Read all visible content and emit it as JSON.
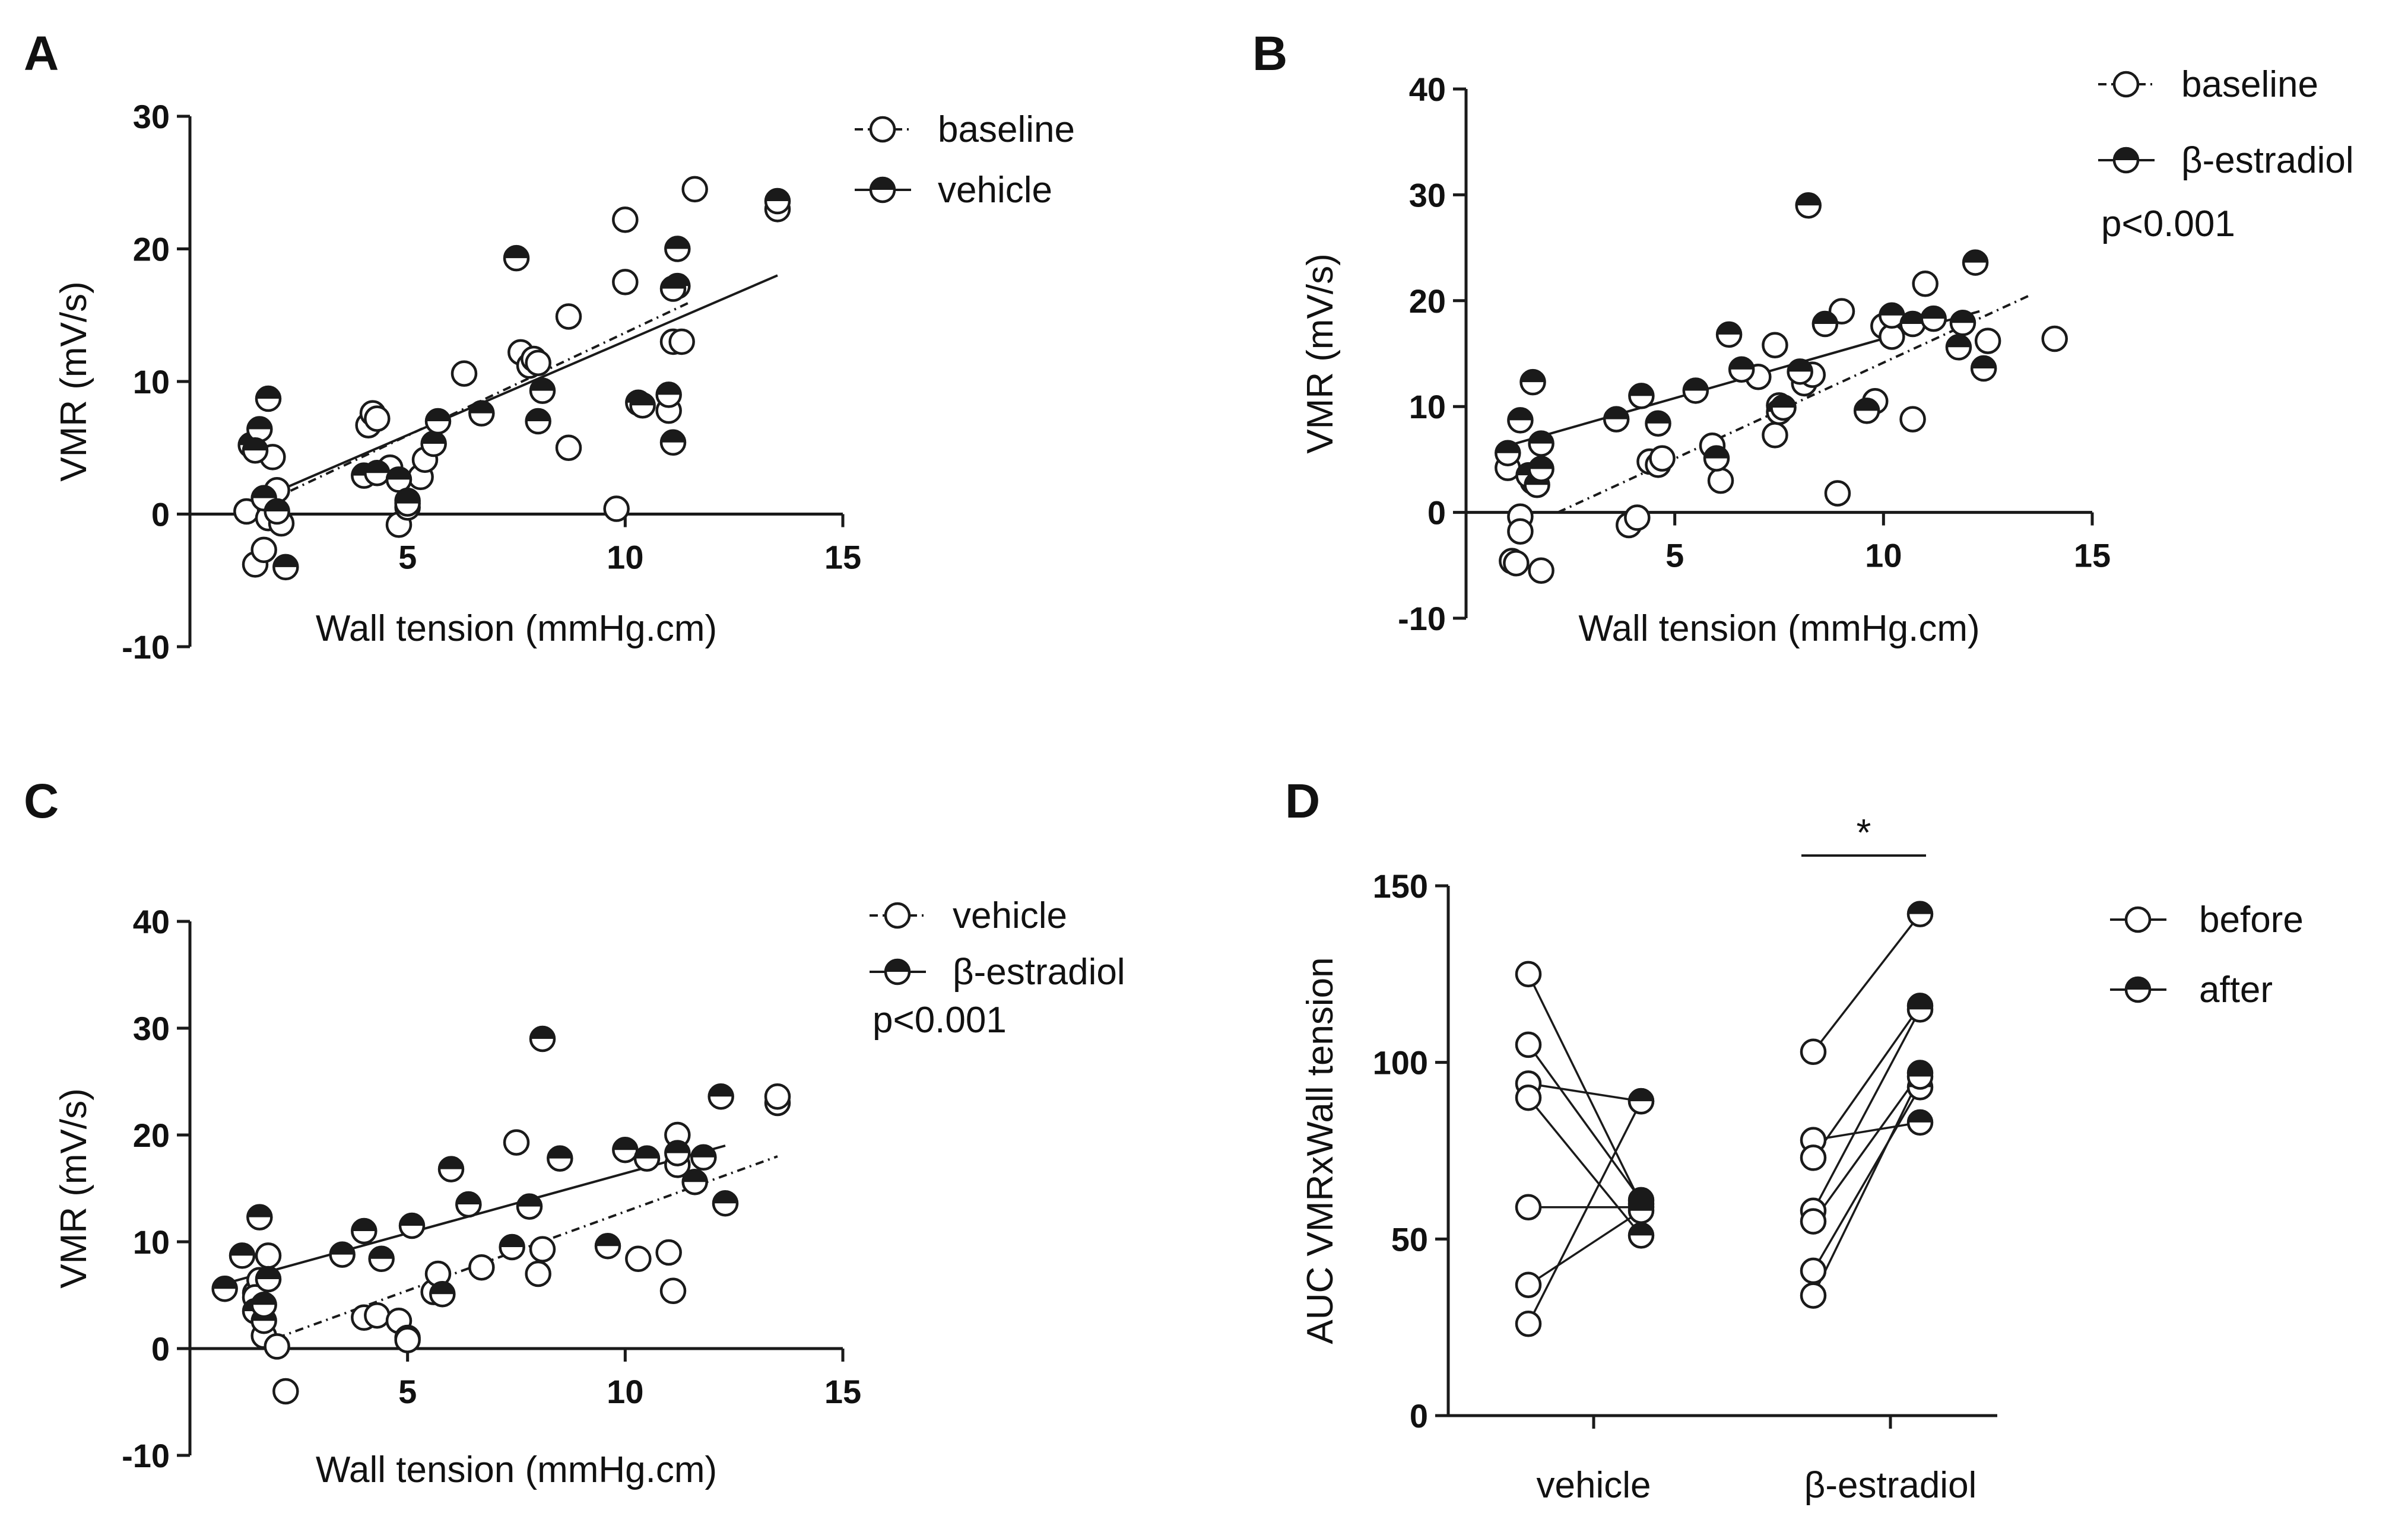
{
  "chart_data": [
    {
      "panel": "A",
      "type": "scatter",
      "xlabel": "Wall tension (mmHg.cm)",
      "ylabel": "VMR (mV/s)",
      "xlim": [
        0,
        15
      ],
      "ylim": [
        -10,
        30
      ],
      "xticks": [
        5,
        10,
        15
      ],
      "yticks": [
        -10,
        0,
        10,
        20,
        30
      ],
      "legend_position": "top-right",
      "annotation": "",
      "series": [
        {
          "name": "baseline",
          "marker": "open",
          "line": "dashdot",
          "fit": [
            [
              1.5,
              0.5
            ],
            [
              11.5,
              16
            ]
          ],
          "points": [
            [
              1.3,
              0.2
            ],
            [
              1.5,
              -3.8
            ],
            [
              1.7,
              -2.7
            ],
            [
              1.9,
              4.3
            ],
            [
              2.0,
              1.8
            ],
            [
              1.8,
              -0.3
            ],
            [
              2.1,
              -0.7
            ],
            [
              4.1,
              6.7
            ],
            [
              4.2,
              7.6
            ],
            [
              4.3,
              7.2
            ],
            [
              4.6,
              3.5
            ],
            [
              4.8,
              -0.8
            ],
            [
              5.0,
              0.5
            ],
            [
              5.3,
              2.8
            ],
            [
              5.4,
              4.1
            ],
            [
              6.3,
              10.6
            ],
            [
              7.6,
              12.2
            ],
            [
              7.8,
              11.2
            ],
            [
              7.9,
              11.7
            ],
            [
              8.0,
              11.4
            ],
            [
              8.7,
              5.0
            ],
            [
              8.7,
              14.9
            ],
            [
              9.8,
              0.4
            ],
            [
              10.0,
              17.5
            ],
            [
              10.0,
              22.2
            ],
            [
              11.0,
              7.8
            ],
            [
              11.1,
              13.0
            ],
            [
              11.3,
              13.0
            ],
            [
              11.6,
              24.5
            ],
            [
              13.5,
              23.0
            ]
          ]
        },
        {
          "name": "vehicle",
          "marker": "half",
          "line": "solid",
          "fit": [
            [
              1.5,
              1.0
            ],
            [
              13.5,
              18.0
            ]
          ],
          "points": [
            [
              1.4,
              5.2
            ],
            [
              1.6,
              6.4
            ],
            [
              1.5,
              4.8
            ],
            [
              1.8,
              8.7
            ],
            [
              1.7,
              1.2
            ],
            [
              2.0,
              0.2
            ],
            [
              2.2,
              -4.0
            ],
            [
              4.0,
              2.9
            ],
            [
              4.3,
              3.1
            ],
            [
              4.8,
              2.6
            ],
            [
              5.0,
              1.0
            ],
            [
              5.0,
              0.8
            ],
            [
              5.6,
              5.3
            ],
            [
              5.7,
              7.0
            ],
            [
              6.7,
              7.6
            ],
            [
              7.5,
              19.3
            ],
            [
              8.0,
              7.0
            ],
            [
              8.1,
              9.3
            ],
            [
              10.3,
              8.4
            ],
            [
              10.4,
              8.2
            ],
            [
              11.0,
              9.0
            ],
            [
              11.1,
              5.4
            ],
            [
              11.2,
              17.2
            ],
            [
              11.1,
              17.0
            ],
            [
              11.2,
              20.0
            ],
            [
              13.5,
              23.6
            ]
          ]
        }
      ]
    },
    {
      "panel": "B",
      "type": "scatter",
      "xlabel": "Wall tension (mmHg.cm)",
      "ylabel": "VMR (mV/s)",
      "xlim": [
        0,
        15
      ],
      "ylim": [
        -10,
        40
      ],
      "xticks": [
        5,
        10,
        15
      ],
      "yticks": [
        -10,
        0,
        10,
        20,
        30,
        40
      ],
      "legend_position": "top-right",
      "annotation": "p<0.001",
      "series": [
        {
          "name": "baseline",
          "marker": "open",
          "line": "dashdot",
          "fit": [
            [
              2.2,
              0.0
            ],
            [
              13.5,
              20.5
            ]
          ],
          "points": [
            [
              1.0,
              4.2
            ],
            [
              1.1,
              -4.6
            ],
            [
              1.2,
              -4.8
            ],
            [
              1.3,
              -0.4
            ],
            [
              1.3,
              -1.8
            ],
            [
              1.6,
              2.9
            ],
            [
              1.8,
              -5.5
            ],
            [
              3.9,
              -1.2
            ],
            [
              4.1,
              -0.5
            ],
            [
              4.4,
              4.8
            ],
            [
              4.6,
              4.5
            ],
            [
              4.7,
              5.1
            ],
            [
              5.9,
              6.3
            ],
            [
              6.1,
              3.0
            ],
            [
              7.0,
              12.8
            ],
            [
              7.5,
              10.1
            ],
            [
              7.4,
              15.8
            ],
            [
              7.4,
              7.3
            ],
            [
              8.1,
              12.2
            ],
            [
              8.3,
              13.0
            ],
            [
              8.9,
              1.8
            ],
            [
              9.0,
              19.0
            ],
            [
              9.8,
              10.5
            ],
            [
              10.0,
              17.6
            ],
            [
              10.2,
              16.6
            ],
            [
              10.7,
              8.8
            ],
            [
              11.0,
              21.6
            ],
            [
              12.5,
              16.2
            ],
            [
              14.1,
              16.4
            ]
          ]
        },
        {
          "name": "β-estradiol",
          "marker": "half",
          "line": "solid",
          "fit": [
            [
              1.0,
              6.3
            ],
            [
              12.3,
              19.0
            ]
          ],
          "points": [
            [
              1.0,
              5.6
            ],
            [
              1.3,
              8.7
            ],
            [
              1.5,
              3.5
            ],
            [
              1.6,
              12.3
            ],
            [
              1.7,
              2.6
            ],
            [
              1.8,
              6.5
            ],
            [
              1.8,
              4.1
            ],
            [
              3.6,
              8.8
            ],
            [
              4.2,
              11.0
            ],
            [
              4.6,
              8.4
            ],
            [
              5.5,
              11.5
            ],
            [
              6.0,
              5.1
            ],
            [
              6.3,
              16.8
            ],
            [
              6.6,
              13.5
            ],
            [
              7.5,
              9.5
            ],
            [
              7.6,
              9.9
            ],
            [
              8.0,
              13.3
            ],
            [
              8.2,
              29.0
            ],
            [
              8.6,
              17.8
            ],
            [
              9.6,
              9.6
            ],
            [
              10.2,
              18.6
            ],
            [
              10.7,
              17.8
            ],
            [
              11.2,
              18.3
            ],
            [
              11.8,
              15.6
            ],
            [
              11.9,
              17.9
            ],
            [
              12.2,
              23.6
            ],
            [
              12.4,
              13.6
            ]
          ]
        }
      ]
    },
    {
      "panel": "C",
      "type": "scatter",
      "xlabel": "Wall tension (mmHg.cm)",
      "ylabel": "VMR (mV/s)",
      "xlim": [
        0,
        15
      ],
      "ylim": [
        -10,
        40
      ],
      "xticks": [
        5,
        10,
        15
      ],
      "yticks": [
        -10,
        0,
        10,
        20,
        30,
        40
      ],
      "legend_position": "top-right",
      "annotation": "p<0.001",
      "series": [
        {
          "name": "vehicle",
          "marker": "open",
          "line": "dashdot",
          "fit": [
            [
              2.0,
              1.0
            ],
            [
              13.5,
              18.0
            ]
          ],
          "points": [
            [
              1.5,
              5.2
            ],
            [
              1.6,
              6.4
            ],
            [
              1.5,
              4.8
            ],
            [
              1.8,
              8.7
            ],
            [
              1.7,
              1.2
            ],
            [
              2.0,
              0.2
            ],
            [
              2.2,
              -4.0
            ],
            [
              4.0,
              2.9
            ],
            [
              4.3,
              3.1
            ],
            [
              4.8,
              2.6
            ],
            [
              5.0,
              1.0
            ],
            [
              5.0,
              0.8
            ],
            [
              5.6,
              5.3
            ],
            [
              5.7,
              7.0
            ],
            [
              6.7,
              7.6
            ],
            [
              7.5,
              19.3
            ],
            [
              8.0,
              7.0
            ],
            [
              8.1,
              9.3
            ],
            [
              10.3,
              8.4
            ],
            [
              11.0,
              9.0
            ],
            [
              11.1,
              5.4
            ],
            [
              11.2,
              17.2
            ],
            [
              11.2,
              20.0
            ],
            [
              13.5,
              23.0
            ],
            [
              13.5,
              23.6
            ]
          ]
        },
        {
          "name": "β-estradiol",
          "marker": "half",
          "line": "solid",
          "fit": [
            [
              1.0,
              6.3
            ],
            [
              12.3,
              19.0
            ]
          ],
          "points": [
            [
              0.8,
              5.6
            ],
            [
              1.2,
              8.7
            ],
            [
              1.5,
              3.5
            ],
            [
              1.6,
              12.3
            ],
            [
              1.7,
              2.6
            ],
            [
              1.8,
              6.5
            ],
            [
              1.7,
              4.1
            ],
            [
              3.5,
              8.8
            ],
            [
              4.0,
              11.0
            ],
            [
              4.4,
              8.4
            ],
            [
              5.1,
              11.5
            ],
            [
              5.8,
              5.1
            ],
            [
              6.0,
              16.8
            ],
            [
              6.4,
              13.5
            ],
            [
              7.4,
              9.5
            ],
            [
              7.8,
              13.3
            ],
            [
              8.1,
              29.0
            ],
            [
              8.5,
              17.8
            ],
            [
              9.6,
              9.6
            ],
            [
              10.0,
              18.6
            ],
            [
              10.5,
              17.8
            ],
            [
              11.2,
              18.3
            ],
            [
              11.6,
              15.6
            ],
            [
              11.8,
              17.9
            ],
            [
              12.2,
              23.6
            ],
            [
              12.3,
              13.6
            ]
          ]
        }
      ]
    },
    {
      "panel": "D",
      "type": "paired-dot",
      "xlabel": "",
      "ylabel": "AUC VMRxWall tension",
      "ylim": [
        0,
        150
      ],
      "yticks": [
        0,
        50,
        100,
        150
      ],
      "categories": [
        "vehicle",
        "β-estradiol"
      ],
      "legend_position": "top-right",
      "significance": {
        "label": "*",
        "group": "β-estradiol"
      },
      "series": [
        {
          "name": "before",
          "marker": "open"
        },
        {
          "name": "after",
          "marker": "half"
        }
      ],
      "pairs": [
        {
          "group": "vehicle",
          "before": 125,
          "after": 60
        },
        {
          "group": "vehicle",
          "before": 105,
          "after": 61
        },
        {
          "group": "vehicle",
          "before": 94,
          "after": 89
        },
        {
          "group": "vehicle",
          "before": 90,
          "after": 51
        },
        {
          "group": "vehicle",
          "before": 59,
          "after": 59
        },
        {
          "group": "vehicle",
          "before": 37,
          "after": 58
        },
        {
          "group": "vehicle",
          "before": 26,
          "after": 89
        },
        {
          "group": "β-estradiol",
          "before": 103,
          "after": 142
        },
        {
          "group": "β-estradiol",
          "before": 78,
          "after": 83
        },
        {
          "group": "β-estradiol",
          "before": 73,
          "after": 116
        },
        {
          "group": "β-estradiol",
          "before": 58,
          "after": 115
        },
        {
          "group": "β-estradiol",
          "before": 55,
          "after": 97
        },
        {
          "group": "β-estradiol",
          "before": 41,
          "after": 93
        },
        {
          "group": "β-estradiol",
          "before": 34,
          "after": 96
        }
      ]
    }
  ]
}
